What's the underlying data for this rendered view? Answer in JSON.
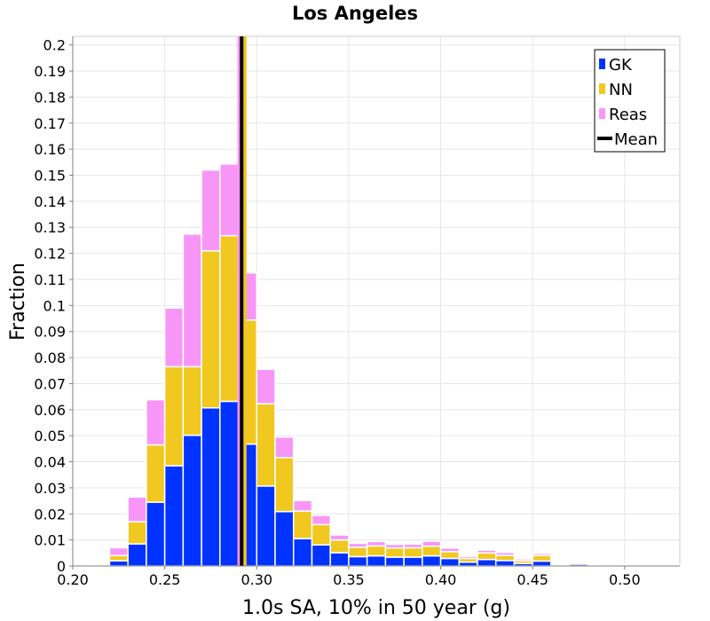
{
  "chart_data": {
    "type": "bar",
    "stacked": true,
    "title": "Los Angeles",
    "xlabel": "1.0s SA, 10% in 50 year (g)",
    "ylabel": "Fraction",
    "xlim": [
      0.2,
      0.53
    ],
    "ylim": [
      0,
      0.2033
    ],
    "x_ticks": [
      0.2,
      0.25,
      0.3,
      0.35,
      0.4,
      0.45,
      0.5
    ],
    "x_tick_labels": [
      "0.20",
      "0.25",
      "0.30",
      "0.35",
      "0.40",
      "0.45",
      "0.50"
    ],
    "y_ticks": [
      0,
      0.01,
      0.02,
      0.03,
      0.04,
      0.05,
      0.06,
      0.07,
      0.08,
      0.09,
      0.1,
      0.11,
      0.12,
      0.13,
      0.14,
      0.15,
      0.16,
      0.17,
      0.18,
      0.19,
      0.2
    ],
    "y_tick_labels": [
      "0",
      "0.01",
      "0.02",
      "0.03",
      "0.04",
      "0.05",
      "0.06",
      "0.07",
      "0.08",
      "0.09",
      "0.1",
      "0.11",
      "0.12",
      "0.13",
      "0.14",
      "0.15",
      "0.16",
      "0.17",
      "0.18",
      "0.19",
      "0.2"
    ],
    "bin_width": 0.01,
    "bins": [
      0.215,
      0.225,
      0.235,
      0.245,
      0.255,
      0.265,
      0.275,
      0.285,
      0.295,
      0.305,
      0.315,
      0.325,
      0.335,
      0.345,
      0.355,
      0.365,
      0.375,
      0.385,
      0.395,
      0.405,
      0.415,
      0.425,
      0.435,
      0.445,
      0.455,
      0.465,
      0.475,
      0.485,
      0.495,
      0.505,
      0.515,
      0.525
    ],
    "series": [
      {
        "name": "GK",
        "color": "#0033ff",
        "values": [
          0.0005,
          0.002,
          0.0085,
          0.0245,
          0.0385,
          0.0502,
          0.0607,
          0.0632,
          0.0468,
          0.0307,
          0.0209,
          0.0105,
          0.0081,
          0.0051,
          0.0036,
          0.0039,
          0.0034,
          0.0034,
          0.0039,
          0.0029,
          0.0015,
          0.0025,
          0.0021,
          0.001,
          0.0019,
          0.0005,
          0.0007,
          0.0003,
          0.0002,
          0.0001,
          0.0001,
          0.0001
        ]
      },
      {
        "name": "NN",
        "color": "#f0c820",
        "values": [
          0.0005,
          0.002,
          0.0085,
          0.022,
          0.038,
          0.0263,
          0.0603,
          0.0636,
          0.0476,
          0.0316,
          0.0207,
          0.0106,
          0.0078,
          0.0049,
          0.0036,
          0.0038,
          0.0035,
          0.0036,
          0.0037,
          0.0026,
          0.0014,
          0.0025,
          0.002,
          0.001,
          0.0021,
          0.0005,
          0.0006,
          0.0003,
          0.0002,
          0.0001,
          0.0001,
          0.0001
        ]
      },
      {
        "name": "Reas",
        "color": "#f896f8",
        "values": [
          0.0004,
          0.003,
          0.0095,
          0.0173,
          0.0225,
          0.0509,
          0.031,
          0.0275,
          0.0181,
          0.0132,
          0.0079,
          0.004,
          0.0035,
          0.0019,
          0.0015,
          0.0017,
          0.0014,
          0.0014,
          0.0019,
          0.0014,
          0.0008,
          0.0011,
          0.0011,
          0.0007,
          0.0008,
          0.0002,
          0.0003,
          0.0002,
          0.0001,
          0.0001,
          0.0001,
          0.0001
        ]
      }
    ],
    "mean_lines": [
      {
        "series": "Reas",
        "color": "#f896f8",
        "value": 0.2905
      },
      {
        "series": "NN",
        "color": "#f0c820",
        "value": 0.2935
      },
      {
        "series": "Mean",
        "color": "#000000",
        "value": 0.2918
      }
    ],
    "legend": {
      "placement": "top-right",
      "entries": [
        {
          "label": "GK",
          "color": "#0033ff",
          "marker": "square"
        },
        {
          "label": "NN",
          "color": "#f0c820",
          "marker": "square"
        },
        {
          "label": "Reas",
          "color": "#f896f8",
          "marker": "square"
        },
        {
          "label": "Mean",
          "color": "#000000",
          "marker": "line"
        }
      ]
    },
    "grid": true
  }
}
